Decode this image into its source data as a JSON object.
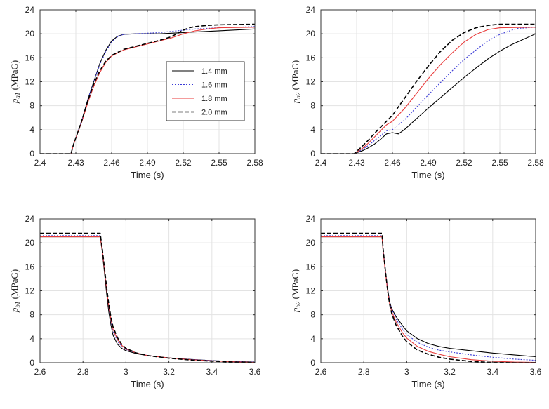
{
  "legend": {
    "location": "inside-right, top-left panel",
    "entries": [
      {
        "label": "1.4 mm",
        "color": "#000000",
        "dash": "solid"
      },
      {
        "label": "1.6 mm",
        "color": "#3b3bd6",
        "dash": "dotted"
      },
      {
        "label": "1.8 mm",
        "color": "#e83a3a",
        "dash": "solid"
      },
      {
        "label": "2.0 mm",
        "color": "#000000",
        "dash": "dashed"
      }
    ]
  },
  "chart_data": [
    {
      "type": "line",
      "xlabel": "Time (s)",
      "ylabel_main": "p",
      "ylabel_sub": "a1",
      "ylabel_unit": " (MPaG)",
      "xlim": [
        2.4,
        2.58
      ],
      "ylim": [
        0,
        24
      ],
      "xticks": [
        2.4,
        2.43,
        2.46,
        2.49,
        2.52,
        2.55,
        2.58
      ],
      "xtick_labels": [
        "2.4",
        "2.43",
        "2.46",
        "2.49",
        "2.52",
        "2.55",
        "2.58"
      ],
      "yticks": [
        0,
        4,
        8,
        12,
        16,
        20,
        24
      ],
      "ytick_labels": [
        "0",
        "4",
        "8",
        "12",
        "16",
        "20",
        "24"
      ],
      "grid": true,
      "show_legend": true,
      "series": [
        {
          "name": "1.4 mm",
          "x": [
            2.4,
            2.426,
            2.428,
            2.435,
            2.44,
            2.445,
            2.45,
            2.455,
            2.46,
            2.465,
            2.47,
            2.48,
            2.49,
            2.5,
            2.51,
            2.52,
            2.53,
            2.55,
            2.58
          ],
          "y": [
            0,
            0,
            1.5,
            5.5,
            9,
            12,
            15,
            17.2,
            18.8,
            19.6,
            19.9,
            20,
            20,
            20,
            20.1,
            20.2,
            20.3,
            20.5,
            20.8
          ]
        },
        {
          "name": "1.6 mm",
          "x": [
            2.4,
            2.426,
            2.428,
            2.435,
            2.44,
            2.445,
            2.45,
            2.455,
            2.46,
            2.465,
            2.47,
            2.48,
            2.49,
            2.5,
            2.51,
            2.52,
            2.53,
            2.55,
            2.58
          ],
          "y": [
            0,
            0,
            1.5,
            5.5,
            9,
            12,
            14.8,
            17,
            18.6,
            19.5,
            19.9,
            20,
            20.1,
            20.2,
            20.4,
            20.6,
            20.8,
            21,
            21.2
          ]
        },
        {
          "name": "1.8 mm",
          "x": [
            2.4,
            2.426,
            2.428,
            2.435,
            2.44,
            2.445,
            2.45,
            2.455,
            2.46,
            2.47,
            2.48,
            2.49,
            2.5,
            2.51,
            2.52,
            2.53,
            2.54,
            2.55,
            2.58
          ],
          "y": [
            0,
            0,
            1.5,
            5.3,
            8.5,
            11.2,
            13.5,
            15.2,
            16.3,
            17.3,
            17.8,
            18.3,
            18.8,
            19.3,
            20,
            20.5,
            20.8,
            21,
            21.1
          ]
        },
        {
          "name": "2.0 mm",
          "x": [
            2.4,
            2.426,
            2.428,
            2.435,
            2.44,
            2.445,
            2.45,
            2.455,
            2.46,
            2.47,
            2.48,
            2.49,
            2.5,
            2.51,
            2.52,
            2.525,
            2.53,
            2.54,
            2.55,
            2.58
          ],
          "y": [
            0,
            0,
            1.5,
            5.5,
            8.8,
            11.6,
            13.8,
            15.4,
            16.4,
            17.4,
            17.9,
            18.4,
            18.9,
            19.5,
            20.6,
            21,
            21.2,
            21.4,
            21.5,
            21.6
          ]
        }
      ]
    },
    {
      "type": "line",
      "xlabel": "Time (s)",
      "ylabel_main": "p",
      "ylabel_sub": "a2",
      "ylabel_unit": " (MPaG)",
      "xlim": [
        2.4,
        2.58
      ],
      "ylim": [
        0,
        24
      ],
      "xticks": [
        2.4,
        2.43,
        2.46,
        2.49,
        2.52,
        2.55,
        2.58
      ],
      "xtick_labels": [
        "2.4",
        "2.43",
        "2.46",
        "2.49",
        "2.52",
        "2.55",
        "2.58"
      ],
      "yticks": [
        0,
        4,
        8,
        12,
        16,
        20,
        24
      ],
      "ytick_labels": [
        "0",
        "4",
        "8",
        "12",
        "16",
        "20",
        "24"
      ],
      "grid": true,
      "show_legend": false,
      "series": [
        {
          "name": "1.4 mm",
          "x": [
            2.4,
            2.428,
            2.435,
            2.44,
            2.445,
            2.45,
            2.455,
            2.46,
            2.465,
            2.47,
            2.48,
            2.49,
            2.5,
            2.51,
            2.52,
            2.53,
            2.54,
            2.55,
            2.56,
            2.58
          ],
          "y": [
            0,
            0,
            0.5,
            1,
            1.6,
            2.4,
            3.3,
            3.5,
            3.3,
            4,
            5.8,
            7.6,
            9.3,
            11,
            12.7,
            14.3,
            15.8,
            17.1,
            18.2,
            20
          ]
        },
        {
          "name": "1.6 mm",
          "x": [
            2.4,
            2.428,
            2.435,
            2.44,
            2.445,
            2.45,
            2.455,
            2.46,
            2.47,
            2.48,
            2.49,
            2.5,
            2.51,
            2.52,
            2.53,
            2.54,
            2.55,
            2.56,
            2.565,
            2.58
          ],
          "y": [
            0,
            0,
            0.7,
            1.4,
            2.2,
            3,
            3.8,
            4,
            5.6,
            7.7,
            9.8,
            11.8,
            13.8,
            15.7,
            17.3,
            18.8,
            19.9,
            20.6,
            20.9,
            21.1
          ]
        },
        {
          "name": "1.8 mm",
          "x": [
            2.4,
            2.428,
            2.435,
            2.44,
            2.445,
            2.45,
            2.455,
            2.46,
            2.47,
            2.48,
            2.49,
            2.5,
            2.51,
            2.52,
            2.53,
            2.54,
            2.55,
            2.58
          ],
          "y": [
            0,
            0,
            0.9,
            1.8,
            2.8,
            3.8,
            4.8,
            5.4,
            7.5,
            10,
            12.5,
            14.8,
            16.8,
            18.6,
            19.9,
            20.7,
            21,
            21.1
          ]
        },
        {
          "name": "2.0 mm",
          "x": [
            2.4,
            2.428,
            2.435,
            2.44,
            2.445,
            2.45,
            2.455,
            2.46,
            2.47,
            2.48,
            2.49,
            2.5,
            2.51,
            2.52,
            2.53,
            2.54,
            2.55,
            2.58
          ],
          "y": [
            0,
            0,
            1.3,
            2.3,
            3.4,
            4.4,
            5.4,
            6.4,
            9.2,
            12,
            14.6,
            17,
            18.9,
            20.2,
            21,
            21.4,
            21.6,
            21.6
          ]
        }
      ]
    },
    {
      "type": "line",
      "xlabel": "Time (s)",
      "ylabel_main": "p",
      "ylabel_sub": "b1",
      "ylabel_unit": " (MPaG)",
      "xlim": [
        2.6,
        3.6
      ],
      "ylim": [
        0,
        24
      ],
      "xticks": [
        2.6,
        2.8,
        3.0,
        3.2,
        3.4,
        3.6
      ],
      "xtick_labels": [
        "2.6",
        "2.8",
        "3",
        "3.2",
        "3.4",
        "3.6"
      ],
      "yticks": [
        0,
        4,
        8,
        12,
        16,
        20,
        24
      ],
      "ytick_labels": [
        "0",
        "4",
        "8",
        "12",
        "16",
        "20",
        "24"
      ],
      "grid": true,
      "show_legend": false,
      "series": [
        {
          "name": "1.4 mm",
          "x": [
            2.6,
            2.88,
            2.89,
            2.9,
            2.91,
            2.92,
            2.93,
            2.94,
            2.96,
            2.98,
            3.0,
            3.05,
            3.1,
            3.2,
            3.3,
            3.4,
            3.5,
            3.6
          ],
          "y": [
            21,
            21,
            18.5,
            15,
            11.5,
            8.5,
            6.3,
            4.6,
            3.1,
            2.4,
            2,
            1.5,
            1.2,
            0.8,
            0.55,
            0.35,
            0.2,
            0.1
          ]
        },
        {
          "name": "1.6 mm",
          "x": [
            2.6,
            2.88,
            2.89,
            2.9,
            2.91,
            2.92,
            2.93,
            2.94,
            2.96,
            2.98,
            3.0,
            3.05,
            3.1,
            3.2,
            3.3,
            3.4,
            3.5,
            3.6
          ],
          "y": [
            21.2,
            21.2,
            18.8,
            15.5,
            12.2,
            9.3,
            7,
            5.3,
            3.6,
            2.7,
            2.2,
            1.6,
            1.2,
            0.8,
            0.55,
            0.35,
            0.2,
            0.1
          ]
        },
        {
          "name": "1.8 mm",
          "x": [
            2.6,
            2.88,
            2.89,
            2.9,
            2.91,
            2.92,
            2.93,
            2.94,
            2.96,
            2.98,
            3.0,
            3.05,
            3.1,
            3.2,
            3.3,
            3.4,
            3.5,
            3.6
          ],
          "y": [
            21,
            21,
            18.7,
            15.4,
            12.2,
            9.4,
            7.2,
            5.6,
            3.9,
            2.9,
            2.3,
            1.6,
            1.2,
            0.8,
            0.5,
            0.3,
            0.15,
            0.05
          ]
        },
        {
          "name": "2.0 mm",
          "x": [
            2.6,
            2.88,
            2.89,
            2.9,
            2.91,
            2.92,
            2.93,
            2.94,
            2.96,
            2.98,
            3.0,
            3.05,
            3.1,
            3.2,
            3.3,
            3.4,
            3.5,
            3.6
          ],
          "y": [
            21.6,
            21.6,
            19,
            15.8,
            12.6,
            9.8,
            7.6,
            6,
            4.2,
            3.1,
            2.4,
            1.6,
            1.2,
            0.75,
            0.45,
            0.25,
            0.1,
            0.02
          ]
        }
      ]
    },
    {
      "type": "line",
      "xlabel": "Time (s)",
      "ylabel_main": "p",
      "ylabel_sub": "b2",
      "ylabel_unit": " (MPaG)",
      "xlim": [
        2.6,
        3.6
      ],
      "ylim": [
        0,
        24
      ],
      "xticks": [
        2.6,
        2.8,
        3.0,
        3.2,
        3.4,
        3.6
      ],
      "xtick_labels": [
        "2.6",
        "2.8",
        "3",
        "3.2",
        "3.4",
        "3.6"
      ],
      "yticks": [
        0,
        4,
        8,
        12,
        16,
        20,
        24
      ],
      "ytick_labels": [
        "0",
        "4",
        "8",
        "12",
        "16",
        "20",
        "24"
      ],
      "grid": true,
      "show_legend": false,
      "series": [
        {
          "name": "1.4 mm",
          "x": [
            2.6,
            2.885,
            2.89,
            2.9,
            2.91,
            2.92,
            2.93,
            2.95,
            2.98,
            3.0,
            3.05,
            3.1,
            3.15,
            3.2,
            3.3,
            3.4,
            3.5,
            3.6
          ],
          "y": [
            21,
            21,
            18.8,
            15.5,
            12.5,
            10.2,
            9,
            7.7,
            6.2,
            5.3,
            4,
            3.2,
            2.7,
            2.4,
            2,
            1.6,
            1.3,
            1
          ]
        },
        {
          "name": "1.6 mm",
          "x": [
            2.6,
            2.885,
            2.89,
            2.9,
            2.91,
            2.92,
            2.93,
            2.95,
            2.98,
            3.0,
            3.05,
            3.1,
            3.15,
            3.2,
            3.3,
            3.4,
            3.5,
            3.6
          ],
          "y": [
            21.2,
            21.2,
            18.9,
            15.6,
            12.5,
            10.2,
            8.9,
            7.3,
            5.6,
            4.7,
            3.4,
            2.6,
            2.1,
            1.8,
            1.3,
            0.9,
            0.6,
            0.4
          ]
        },
        {
          "name": "1.8 mm",
          "x": [
            2.6,
            2.885,
            2.89,
            2.9,
            2.91,
            2.92,
            2.93,
            2.95,
            2.98,
            3.0,
            3.05,
            3.1,
            3.15,
            3.2,
            3.3,
            3.4,
            3.5,
            3.6
          ],
          "y": [
            21,
            21,
            18.6,
            15.3,
            12.2,
            9.9,
            8.5,
            6.8,
            5,
            4.1,
            2.7,
            1.9,
            1.4,
            1,
            0.5,
            0.25,
            0.1,
            0.05
          ]
        },
        {
          "name": "2.0 mm",
          "x": [
            2.6,
            2.885,
            2.89,
            2.9,
            2.91,
            2.92,
            2.93,
            2.95,
            2.98,
            3.0,
            3.05,
            3.1,
            3.15,
            3.2,
            3.3,
            3.4,
            3.5,
            3.6
          ],
          "y": [
            21.6,
            21.6,
            19,
            15.5,
            12.3,
            9.8,
            8.2,
            6.3,
            4.4,
            3.5,
            2.1,
            1.4,
            0.9,
            0.6,
            0.2,
            0.05,
            0,
            0
          ]
        }
      ]
    }
  ]
}
